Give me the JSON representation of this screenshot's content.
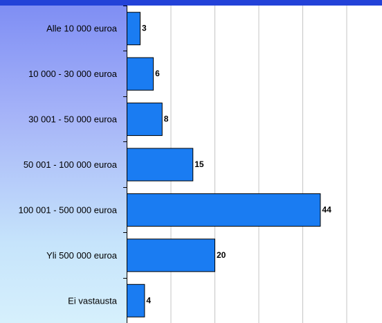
{
  "colors": {
    "bar": "#1a7cf2",
    "top_bar": "#2342d8",
    "grid": "#c4c4c4"
  },
  "chart_data": {
    "type": "bar",
    "orientation": "horizontal",
    "categories": [
      "Alle 10 000 euroa",
      "10 000 - 30 000 euroa",
      "30 001 - 50 000 euroa",
      "50 001 - 100 000 euroa",
      "100 001 - 500 000 euroa",
      "Yli 500 000 euroa",
      "Ei vastausta"
    ],
    "values": [
      3,
      6,
      8,
      15,
      44,
      20,
      4
    ],
    "data_labels": [
      "3",
      "6",
      "8",
      "15",
      "44",
      "20",
      "4"
    ],
    "xlim": [
      0,
      58
    ],
    "x_gridlines": [
      10,
      20,
      30,
      40,
      50
    ],
    "grid": true,
    "title": "",
    "xlabel": "",
    "ylabel": ""
  }
}
